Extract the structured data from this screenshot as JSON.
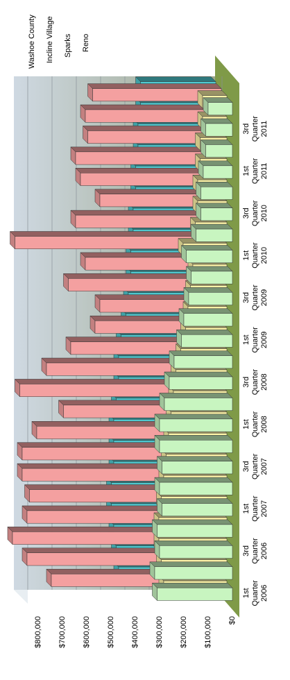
{
  "chart_data": {
    "type": "bar3d",
    "categories": [
      "1st Quarter 2006",
      null,
      "3rd Quarter 2006",
      null,
      "1st Quarter 2007",
      null,
      "3rd Quarter 2007",
      null,
      "1st Quarter 2008",
      null,
      "3rd Quarter 2008",
      null,
      "1st Quarter 2009",
      null,
      "3rd Quarter 2009",
      null,
      "1st Quarter 2010",
      null,
      "3rd Quarter 2010",
      null,
      "1st Quarter 2011",
      null,
      "3rd Quarter 2011",
      null
    ],
    "series": [
      {
        "name": "Washoe County",
        "color": "#4fc9d0",
        "values": [
          400000,
          410000,
          420000,
          430000,
          430000,
          420000,
          420000,
          420000,
          410000,
          400000,
          400000,
          390000,
          370000,
          360000,
          350000,
          350000,
          340000,
          340000,
          330000,
          330000,
          320000,
          320000,
          310000,
          310000
        ]
      },
      {
        "name": "Incline Village",
        "color": "#f4a0a0",
        "values": [
          700000,
          800000,
          860000,
          800000,
          790000,
          820000,
          820000,
          760000,
          650000,
          830000,
          720000,
          620000,
          520000,
          500000,
          630000,
          560000,
          850000,
          600000,
          500000,
          580000,
          600000,
          550000,
          560000,
          530000
        ]
      },
      {
        "name": "Sparks",
        "color": "#fff5a8",
        "values": [
          260000,
          270000,
          280000,
          280000,
          270000,
          260000,
          250000,
          240000,
          230000,
          220000,
          210000,
          190000,
          170000,
          160000,
          150000,
          140000,
          180000,
          130000,
          120000,
          120000,
          110000,
          110000,
          100000,
          100000
        ]
      },
      {
        "name": "Reno",
        "color": "#c8f5c0",
        "values": [
          310000,
          320000,
          300000,
          310000,
          290000,
          300000,
          290000,
          300000,
          300000,
          280000,
          260000,
          240000,
          210000,
          200000,
          180000,
          170000,
          190000,
          150000,
          130000,
          130000,
          120000,
          110000,
          110000,
          100000
        ]
      }
    ],
    "ylim": [
      0,
      900000
    ],
    "yticks": [
      {
        "value": 0,
        "label": "$0"
      },
      {
        "value": 100000,
        "label": "$100,000"
      },
      {
        "value": 200000,
        "label": "$200,000"
      },
      {
        "value": 300000,
        "label": "$300,000"
      },
      {
        "value": 400000,
        "label": "$400,000"
      },
      {
        "value": 500000,
        "label": "$500,000"
      },
      {
        "value": 600000,
        "label": "$600,000"
      },
      {
        "value": 700000,
        "label": "$700,000"
      },
      {
        "value": 800000,
        "label": "$800,000"
      }
    ],
    "grid": true
  }
}
